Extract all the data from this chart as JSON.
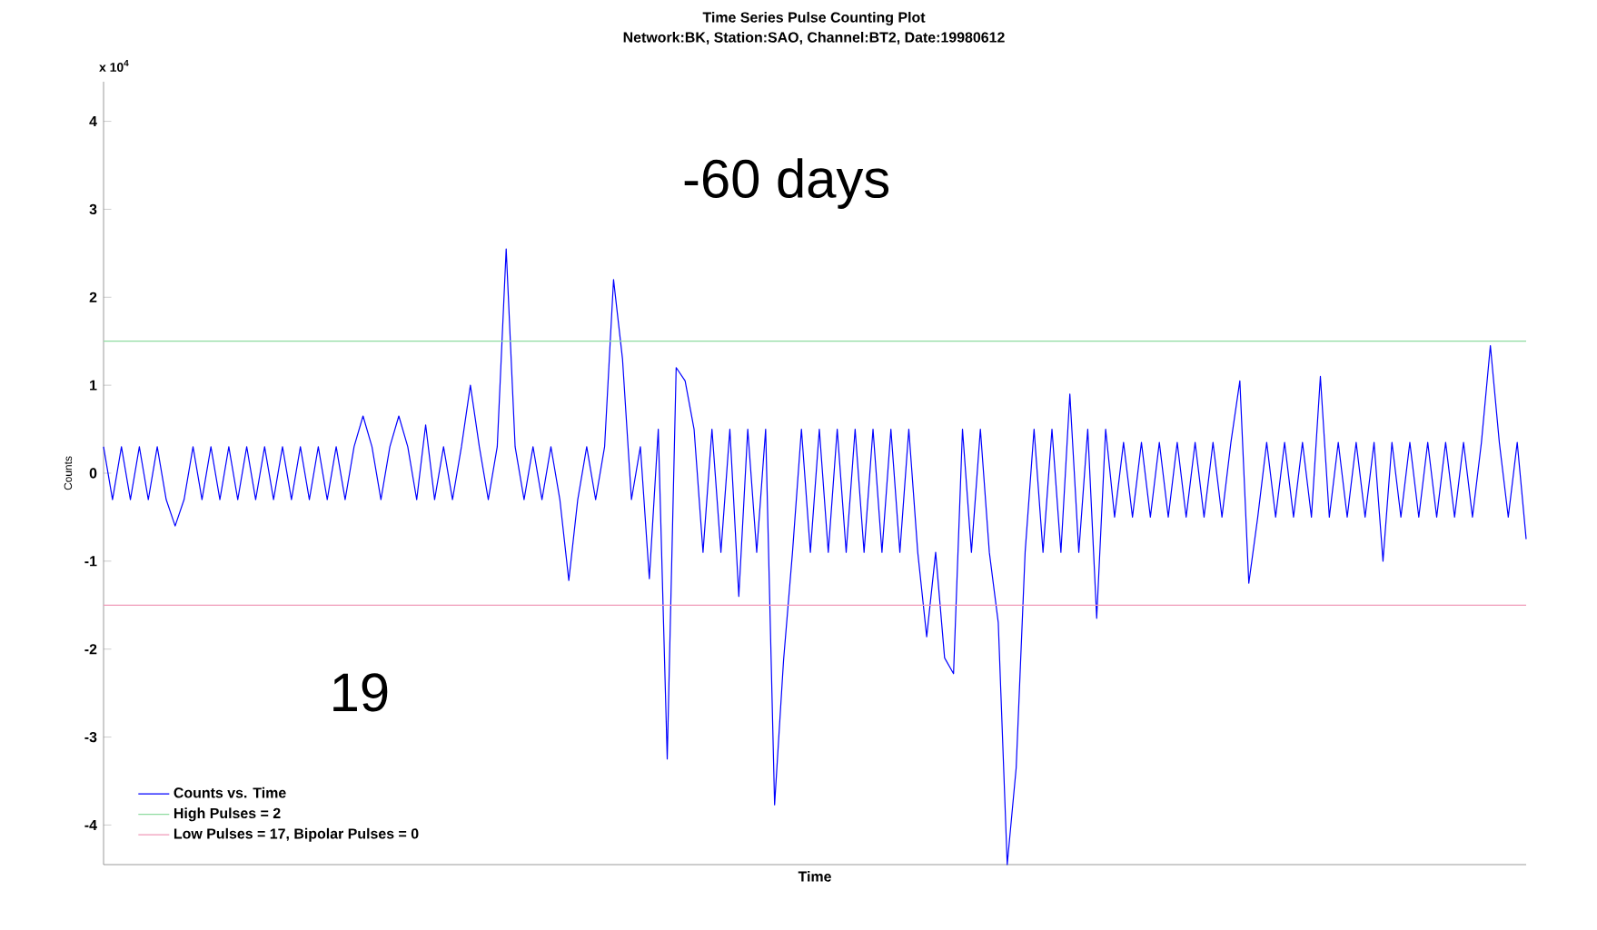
{
  "chart_data": {
    "type": "line",
    "title": "Time Series Pulse Counting Plot",
    "subtitle": "Network:BK, Station:SAO, Channel:BT2, Date:19980612",
    "xlabel": "Time",
    "ylabel": "Counts",
    "annotations": [
      "x 10$^{4}$",
      "-60 days",
      "19"
    ],
    "categories": [
      null,
      null,
      null,
      null,
      null,
      null,
      null,
      null,
      null,
      null,
      null,
      null,
      null,
      null,
      null,
      null,
      null,
      null,
      null,
      null,
      null,
      null,
      null,
      null,
      null,
      null,
      null,
      null,
      null,
      null,
      null,
      null,
      null,
      null,
      null,
      null,
      null,
      null,
      null,
      null,
      null,
      null,
      null,
      null,
      null,
      null,
      null,
      null,
      null,
      null,
      null,
      null,
      null,
      null,
      null,
      null,
      null,
      null,
      null,
      null,
      null,
      null,
      null,
      null,
      null,
      null,
      null,
      null,
      null,
      null,
      null,
      null,
      null,
      null,
      null,
      null,
      null,
      null,
      null,
      null,
      null,
      null,
      null,
      null,
      null,
      null,
      null,
      null,
      null,
      null,
      null,
      null,
      null,
      null,
      null,
      null,
      null,
      null,
      null,
      null,
      null,
      null,
      null,
      null,
      null,
      null,
      null,
      null,
      null,
      null,
      null,
      null,
      null,
      null,
      null,
      null,
      null,
      null,
      null,
      null,
      null,
      null,
      null,
      null,
      null,
      null,
      null,
      null,
      null,
      null,
      null,
      null,
      null,
      null,
      null,
      null,
      null,
      null,
      null,
      null,
      null,
      null,
      null,
      null,
      null,
      null,
      null,
      null,
      null,
      null,
      null,
      null,
      null,
      null,
      null,
      null,
      null,
      null,
      null,
      null
    ],
    "series": [
      {
        "name": "Counts vs. Time",
        "color": "#0000ff",
        "values": [
          0.3,
          -0.3,
          0.3,
          -0.3,
          0.3,
          -0.3,
          0.3,
          -0.3,
          -0.6,
          -0.3,
          0.3,
          -0.3,
          0.3,
          -0.3,
          0.3,
          -0.3,
          0.3,
          -0.3,
          0.3,
          -0.3,
          0.3,
          -0.3,
          0.3,
          -0.3,
          0.3,
          -0.3,
          0.3,
          -0.3,
          0.3,
          0.65,
          0.3,
          -0.3,
          0.3,
          0.65,
          0.3,
          -0.3,
          0.55,
          -0.3,
          0.3,
          -0.3,
          0.3,
          1.0,
          0.3,
          -0.3,
          0.3,
          2.55,
          0.3,
          -0.3,
          0.3,
          -0.3,
          0.3,
          -0.3,
          -1.22,
          -0.3,
          0.3,
          -0.3,
          0.3,
          2.2,
          1.3,
          -0.3,
          0.3,
          -1.2,
          0.5,
          -3.25,
          1.2,
          1.05,
          0.5,
          -0.9,
          0.5,
          -0.9,
          0.5,
          -1.4,
          0.5,
          -0.9,
          0.5,
          -3.77,
          -2.13,
          -0.9,
          0.5,
          -0.9,
          0.5,
          -0.9,
          0.5,
          -0.9,
          0.5,
          -0.9,
          0.5,
          -0.9,
          0.5,
          -0.9,
          0.5,
          -0.9,
          -1.86,
          -0.9,
          -2.1,
          -2.28,
          0.5,
          -0.9,
          0.5,
          -0.9,
          -1.7,
          -4.45,
          -3.35,
          -0.9,
          0.5,
          -0.9,
          0.5,
          -0.9,
          0.9,
          -0.9,
          0.5,
          -1.65,
          0.5,
          -0.5,
          0.35,
          -0.5,
          0.35,
          -0.5,
          0.35,
          -0.5,
          0.35,
          -0.5,
          0.35,
          -0.5,
          0.35,
          -0.5,
          0.35,
          1.05,
          -1.25,
          -0.5,
          0.35,
          -0.5,
          0.35,
          -0.5,
          0.35,
          -0.5,
          1.1,
          -0.5,
          0.35,
          -0.5,
          0.35,
          -0.5,
          0.35,
          -1.0,
          0.35,
          -0.5,
          0.35,
          -0.5,
          0.35,
          -0.5,
          0.35,
          -0.5,
          0.35,
          -0.5,
          0.35,
          1.45,
          0.35,
          -0.5,
          0.35,
          -0.75
        ]
      },
      {
        "name": "High Pulses = 2",
        "color": "#8fdca0",
        "values": [
          1.5,
          1.5,
          1.5,
          1.5,
          1.5,
          1.5,
          1.5,
          1.5,
          1.5,
          1.5,
          1.5,
          1.5,
          1.5,
          1.5,
          1.5,
          1.5,
          1.5,
          1.5,
          1.5,
          1.5,
          1.5,
          1.5,
          1.5,
          1.5,
          1.5,
          1.5,
          1.5,
          1.5,
          1.5,
          1.5,
          1.5,
          1.5,
          1.5,
          1.5,
          1.5,
          1.5,
          1.5,
          1.5,
          1.5,
          1.5,
          1.5,
          1.5,
          1.5,
          1.5,
          1.5,
          1.5,
          1.5,
          1.5,
          1.5,
          1.5,
          1.5,
          1.5,
          1.5,
          1.5,
          1.5,
          1.5,
          1.5,
          1.5,
          1.5,
          1.5,
          1.5,
          1.5,
          1.5,
          1.5,
          1.5,
          1.5,
          1.5,
          1.5,
          1.5,
          1.5,
          1.5,
          1.5,
          1.5,
          1.5,
          1.5,
          1.5,
          1.5,
          1.5,
          1.5,
          1.5,
          1.5,
          1.5,
          1.5,
          1.5,
          1.5,
          1.5,
          1.5,
          1.5,
          1.5,
          1.5,
          1.5,
          1.5,
          1.5,
          1.5,
          1.5,
          1.5,
          1.5,
          1.5,
          1.5,
          1.5,
          1.5,
          1.5,
          1.5,
          1.5,
          1.5,
          1.5,
          1.5,
          1.5,
          1.5,
          1.5,
          1.5,
          1.5,
          1.5,
          1.5,
          1.5,
          1.5,
          1.5,
          1.5,
          1.5,
          1.5,
          1.5,
          1.5,
          1.5,
          1.5,
          1.5,
          1.5,
          1.5,
          1.5,
          1.5,
          1.5,
          1.5,
          1.5,
          1.5,
          1.5,
          1.5,
          1.5,
          1.5,
          1.5,
          1.5,
          1.5,
          1.5,
          1.5,
          1.5,
          1.5,
          1.5,
          1.5,
          1.5,
          1.5,
          1.5,
          1.5,
          1.5,
          1.5,
          1.5,
          1.5,
          1.5,
          1.5,
          1.5,
          1.5,
          1.5,
          1.5
        ]
      },
      {
        "name": "Low Pulses = 17, Bipolar Pulses = 0",
        "color": "#f09ab8",
        "values": [
          -1.5,
          -1.5,
          -1.5,
          -1.5,
          -1.5,
          -1.5,
          -1.5,
          -1.5,
          -1.5,
          -1.5,
          -1.5,
          -1.5,
          -1.5,
          -1.5,
          -1.5,
          -1.5,
          -1.5,
          -1.5,
          -1.5,
          -1.5,
          -1.5,
          -1.5,
          -1.5,
          -1.5,
          -1.5,
          -1.5,
          -1.5,
          -1.5,
          -1.5,
          -1.5,
          -1.5,
          -1.5,
          -1.5,
          -1.5,
          -1.5,
          -1.5,
          -1.5,
          -1.5,
          -1.5,
          -1.5,
          -1.5,
          -1.5,
          -1.5,
          -1.5,
          -1.5,
          -1.5,
          -1.5,
          -1.5,
          -1.5,
          -1.5,
          -1.5,
          -1.5,
          -1.5,
          -1.5,
          -1.5,
          -1.5,
          -1.5,
          -1.5,
          -1.5,
          -1.5,
          -1.5,
          -1.5,
          -1.5,
          -1.5,
          -1.5,
          -1.5,
          -1.5,
          -1.5,
          -1.5,
          -1.5,
          -1.5,
          -1.5,
          -1.5,
          -1.5,
          -1.5,
          -1.5,
          -1.5,
          -1.5,
          -1.5,
          -1.5,
          -1.5,
          -1.5,
          -1.5,
          -1.5,
          -1.5,
          -1.5,
          -1.5,
          -1.5,
          -1.5,
          -1.5,
          -1.5,
          -1.5,
          -1.5,
          -1.5,
          -1.5,
          -1.5,
          -1.5,
          -1.5,
          -1.5,
          -1.5,
          -1.5,
          -1.5,
          -1.5,
          -1.5,
          -1.5,
          -1.5,
          -1.5,
          -1.5,
          -1.5,
          -1.5,
          -1.5,
          -1.5,
          -1.5,
          -1.5,
          -1.5,
          -1.5,
          -1.5,
          -1.5,
          -1.5,
          -1.5,
          -1.5,
          -1.5,
          -1.5,
          -1.5,
          -1.5,
          -1.5,
          -1.5,
          -1.5,
          -1.5,
          -1.5,
          -1.5,
          -1.5,
          -1.5,
          -1.5,
          -1.5,
          -1.5,
          -1.5,
          -1.5,
          -1.5,
          -1.5,
          -1.5,
          -1.5,
          -1.5,
          -1.5,
          -1.5,
          -1.5,
          -1.5,
          -1.5,
          -1.5,
          -1.5,
          -1.5,
          -1.5,
          -1.5,
          -1.5,
          -1.5,
          -1.5,
          -1.5,
          -1.5,
          -1.5,
          -1.5
        ]
      }
    ],
    "ylim": [
      -4.45,
      4.45
    ],
    "yticks": [
      -4,
      -3,
      -2,
      -1,
      0,
      1,
      2,
      3,
      4
    ],
    "legend": "bottom left",
    "tick_labels": "y",
    "grid": false
  }
}
